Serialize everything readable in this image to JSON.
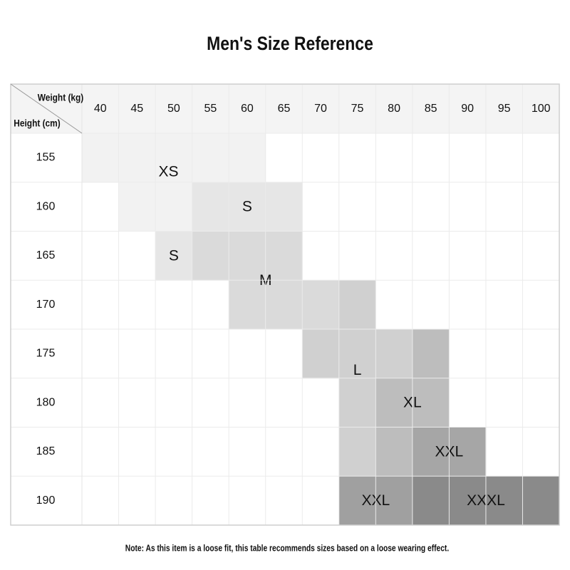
{
  "header": {
    "title": "Men's Size Reference"
  },
  "table": {
    "corner": {
      "column_label": "Weight (kg)",
      "row_label": "Height (cm)"
    },
    "weights": [
      "40",
      "45",
      "50",
      "55",
      "60",
      "65",
      "70",
      "75",
      "80",
      "85",
      "90",
      "95",
      "100"
    ],
    "heights": [
      "155",
      "160",
      "165",
      "170",
      "175",
      "180",
      "185",
      "190"
    ],
    "zones": [
      {
        "label": "XS",
        "color": "#f2f2f2",
        "cells": [
          [
            0,
            0
          ],
          [
            0,
            1
          ],
          [
            0,
            2
          ],
          [
            0,
            3
          ],
          [
            0,
            4
          ],
          [
            1,
            1
          ],
          [
            1,
            2
          ]
        ]
      },
      {
        "label": "S",
        "color": "#e6e6e6",
        "cells": [
          [
            1,
            3
          ],
          [
            1,
            4
          ],
          [
            1,
            5
          ]
        ]
      },
      {
        "label": "S",
        "color": "#e6e6e6",
        "cells": [
          [
            2,
            2
          ]
        ]
      },
      {
        "label": "M",
        "color": "#dadada",
        "cells": [
          [
            2,
            3
          ],
          [
            2,
            4
          ],
          [
            2,
            5
          ],
          [
            3,
            4
          ],
          [
            3,
            5
          ],
          [
            3,
            6
          ]
        ]
      },
      {
        "label": "L",
        "color": "#d0d0d0",
        "cells": [
          [
            3,
            7
          ],
          [
            4,
            6
          ],
          [
            4,
            7
          ],
          [
            4,
            8
          ],
          [
            5,
            7
          ],
          [
            6,
            7
          ]
        ]
      },
      {
        "label": "XL",
        "color": "#bdbdbd",
        "cells": [
          [
            4,
            9
          ],
          [
            5,
            8
          ],
          [
            5,
            9
          ],
          [
            6,
            8
          ]
        ]
      },
      {
        "label": "XXL",
        "color": "#a6a6a6",
        "cells": [
          [
            6,
            9
          ],
          [
            6,
            10
          ]
        ]
      },
      {
        "label": "XXL",
        "color": "#a0a0a0",
        "cells": [
          [
            7,
            7
          ],
          [
            7,
            8
          ]
        ]
      },
      {
        "label": "XXXL",
        "color": "#8a8a8a",
        "cells": [
          [
            7,
            9
          ],
          [
            7,
            10
          ],
          [
            7,
            11
          ],
          [
            7,
            12
          ]
        ]
      }
    ]
  },
  "note": "Note: As this item is a loose fit, this table recommends sizes based on a loose wearing effect."
}
